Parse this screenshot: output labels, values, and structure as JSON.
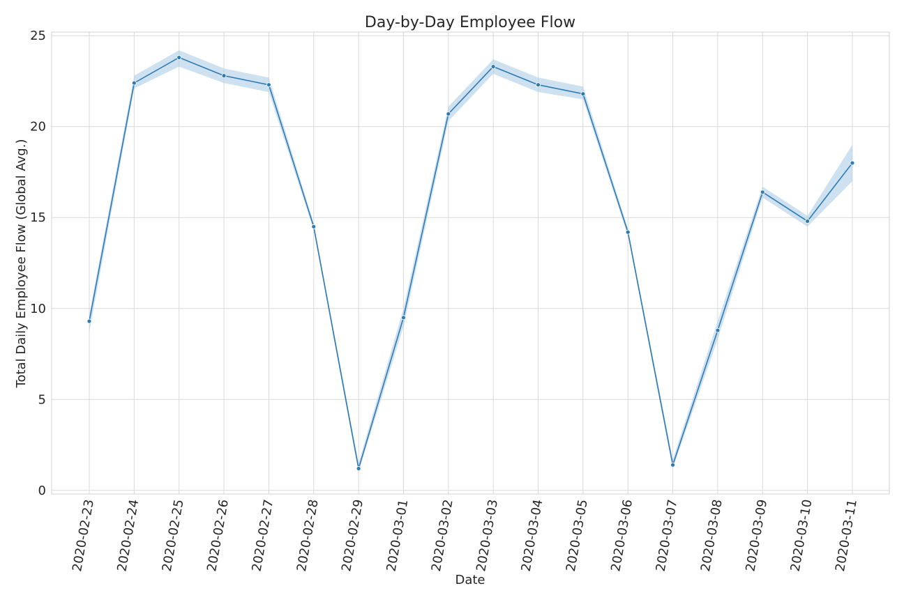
{
  "chart_data": {
    "type": "line",
    "title": "Day-by-Day Employee Flow",
    "xlabel": "Date",
    "ylabel": "Total Daily Employee Flow (Global Avg.)",
    "ylim": [
      -0.2,
      25.2
    ],
    "yticks": [
      0,
      5,
      10,
      15,
      20,
      25
    ],
    "grid": true,
    "colors": {
      "line": "#2e7ab2",
      "band": "#aecde6"
    },
    "categories": [
      "2020-02-23",
      "2020-02-24",
      "2020-02-25",
      "2020-02-26",
      "2020-02-27",
      "2020-02-28",
      "2020-02-29",
      "2020-03-01",
      "2020-03-02",
      "2020-03-03",
      "2020-03-04",
      "2020-03-05",
      "2020-03-06",
      "2020-03-07",
      "2020-03-08",
      "2020-03-09",
      "2020-03-10",
      "2020-03-11"
    ],
    "series": [
      {
        "values": [
          9.3,
          22.4,
          23.8,
          22.8,
          22.3,
          14.5,
          1.2,
          9.5,
          20.7,
          23.3,
          22.3,
          21.8,
          14.2,
          1.4,
          8.8,
          16.4,
          14.8,
          18.0
        ],
        "ci_lower": [
          8.7,
          22.1,
          23.3,
          22.4,
          21.9,
          14.3,
          1.0,
          9.0,
          20.3,
          22.9,
          21.9,
          21.5,
          14.0,
          1.2,
          8.3,
          16.1,
          14.5,
          17.0
        ],
        "ci_upper": [
          9.7,
          22.8,
          24.2,
          23.2,
          22.7,
          14.7,
          1.5,
          10.0,
          21.1,
          23.7,
          22.7,
          22.2,
          14.4,
          1.7,
          9.3,
          16.7,
          15.1,
          19.0
        ]
      }
    ]
  }
}
